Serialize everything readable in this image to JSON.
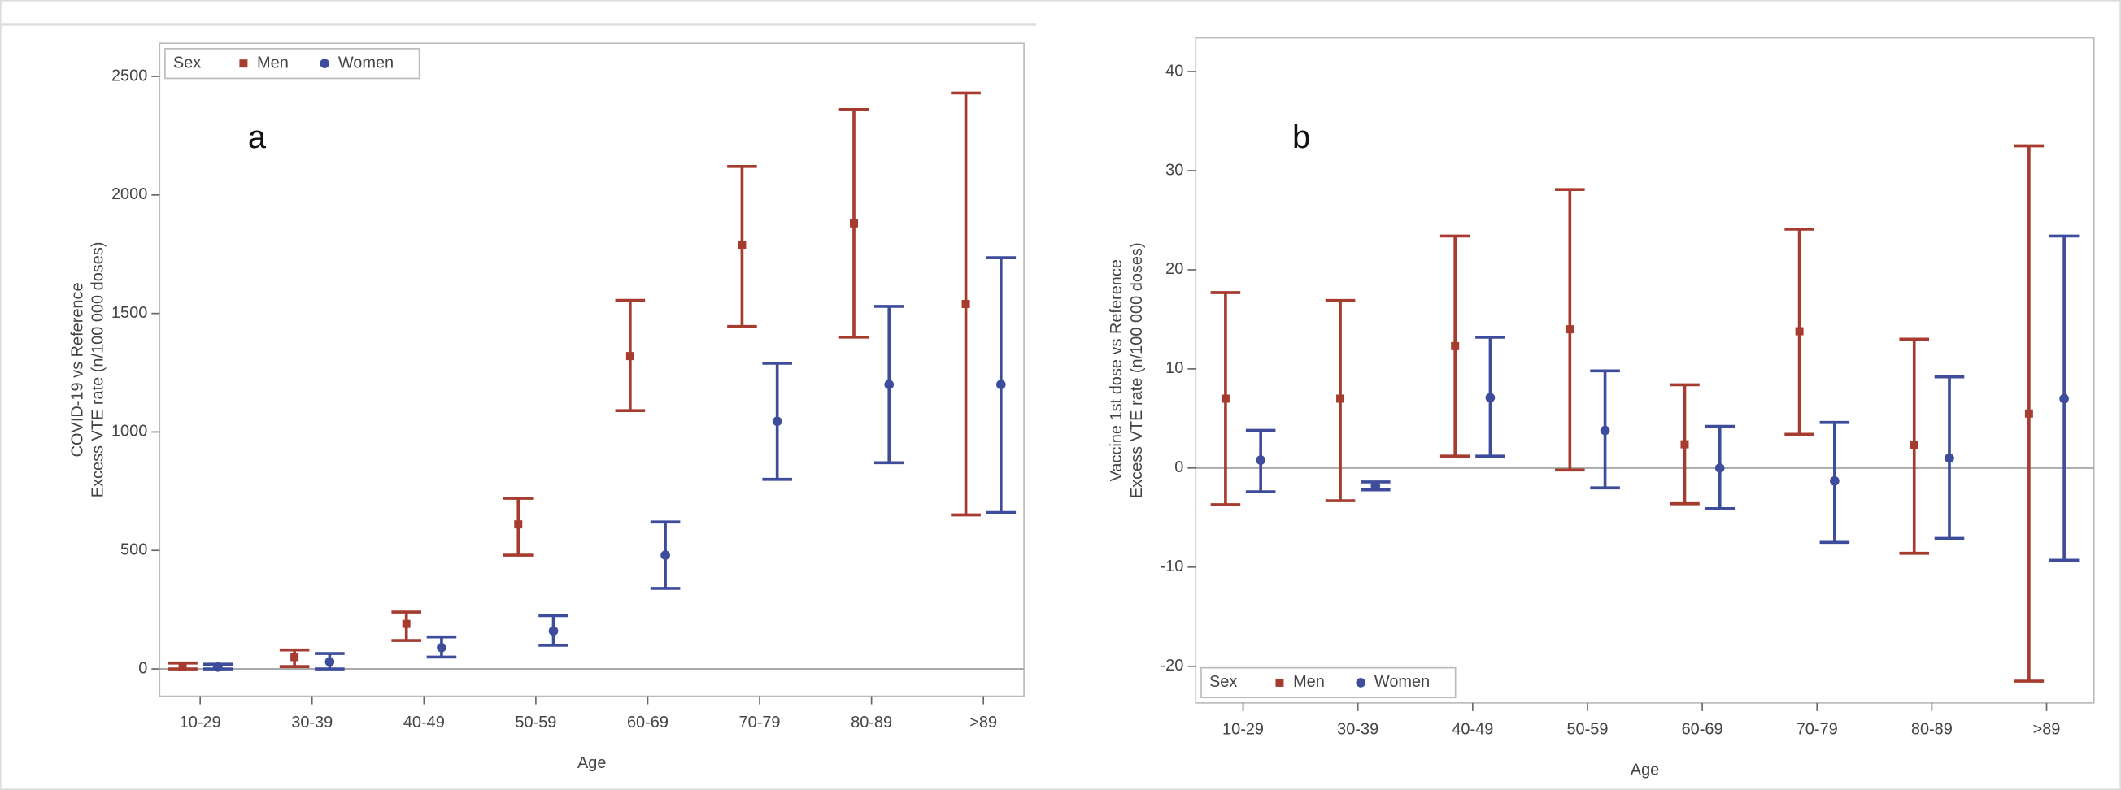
{
  "chart_data": [
    {
      "type": "errorbar",
      "annotation": "a",
      "ylabel": [
        "COVID-19 vs Reference",
        "Excess VTE rate (n/100 000 doses)"
      ],
      "xlabel": "Age",
      "categories": [
        "10-29",
        "30-39",
        "40-49",
        "50-59",
        "60-69",
        "70-79",
        "80-89",
        ">89"
      ],
      "legend_title": "Sex",
      "legend": "upper left",
      "reference_line": 0,
      "ylim": [
        -115,
        2640
      ],
      "yticks": [
        0,
        500,
        1000,
        1500,
        2000,
        2500
      ],
      "series": [
        {
          "name": "Men",
          "color": "#a63b2f",
          "marker": "square",
          "values": [
            10,
            50,
            190,
            610,
            1320,
            1790,
            1880,
            1540
          ],
          "lower": [
            0,
            10,
            120,
            480,
            1090,
            1445,
            1400,
            650
          ],
          "upper": [
            25,
            80,
            240,
            720,
            1555,
            2120,
            2360,
            2430
          ]
        },
        {
          "name": "Women",
          "color": "#3e4d9b",
          "marker": "circle",
          "values": [
            8,
            30,
            90,
            160,
            480,
            1045,
            1200,
            1200
          ],
          "lower": [
            0,
            0,
            50,
            100,
            340,
            800,
            870,
            660
          ],
          "upper": [
            20,
            65,
            135,
            225,
            620,
            1290,
            1530,
            1735
          ]
        }
      ]
    },
    {
      "type": "errorbar",
      "annotation": "b",
      "ylabel": [
        "Vaccine 1st dose vs Reference",
        "Excess VTE rate (n/100 000 doses)"
      ],
      "xlabel": "Age",
      "categories": [
        "10-29",
        "30-39",
        "40-49",
        "50-59",
        "60-69",
        "70-79",
        "80-89",
        ">89"
      ],
      "legend_title": "Sex",
      "legend": "lower left",
      "reference_line": 0,
      "ylim": [
        -23.7,
        43.4
      ],
      "yticks": [
        -20,
        -10,
        0,
        10,
        20,
        30,
        40
      ],
      "series": [
        {
          "name": "Men",
          "color": "#a63b2f",
          "marker": "square",
          "values": [
            7,
            7,
            12.3,
            14,
            2.4,
            13.8,
            2.3,
            5.5
          ],
          "lower": [
            -3.7,
            -3.3,
            1.2,
            -0.2,
            -3.6,
            3.4,
            -8.6,
            -21.5
          ],
          "upper": [
            17.7,
            16.9,
            23.4,
            28.1,
            8.4,
            24.1,
            13,
            32.5
          ]
        },
        {
          "name": "Women",
          "color": "#3e4d9b",
          "marker": "circle",
          "values": [
            0.8,
            -1.8,
            7.1,
            3.8,
            0,
            -1.3,
            1,
            7
          ],
          "lower": [
            -2.4,
            -2.2,
            1.2,
            -2,
            -4.1,
            -7.5,
            -7.1,
            -9.3
          ],
          "upper": [
            3.8,
            -1.4,
            13.2,
            9.8,
            4.2,
            4.6,
            9.2,
            23.4
          ]
        }
      ]
    }
  ]
}
